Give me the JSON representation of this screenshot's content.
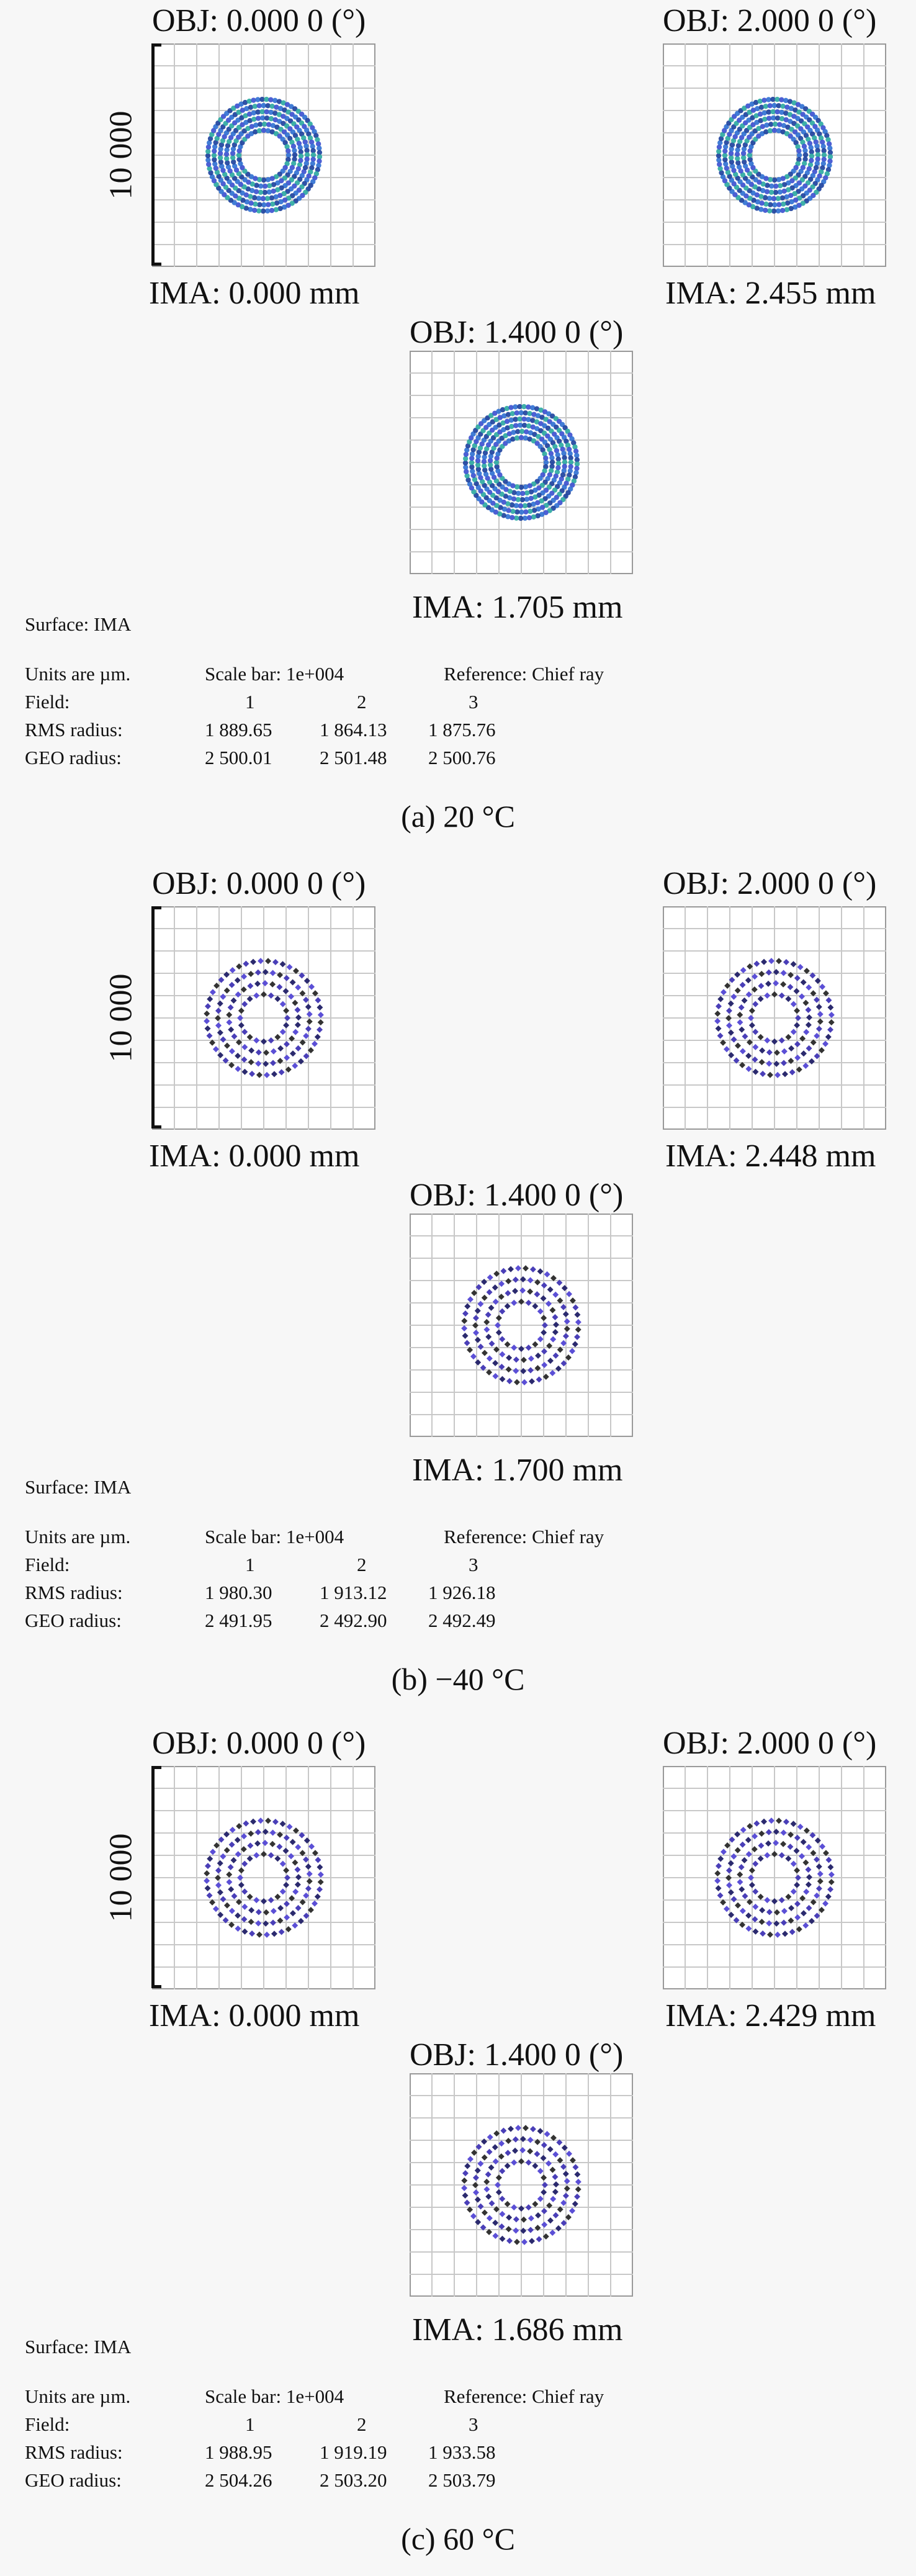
{
  "panels": [
    {
      "caption": "(a) 20 °C",
      "scale_label": "10 000",
      "marker": "circle",
      "colors": [
        "#2d6fd1",
        "#1b3f9c",
        "#2aa8a0",
        "#3b4fcf"
      ],
      "fields": [
        {
          "obj": "OBJ: 0.000 0 (°)",
          "ima": "IMA: 0.000 mm"
        },
        {
          "obj": "OBJ: 2.000 0 (°)",
          "ima": "IMA: 2.455 mm"
        },
        {
          "obj": "OBJ: 1.400 0 (°)",
          "ima": "IMA: 1.705 mm"
        }
      ],
      "info": {
        "surface": "Surface: IMA",
        "units": "Units are µm.",
        "scale_bar": "Scale bar: 1e+004",
        "reference": "Reference: Chief ray",
        "field_label": "Field:",
        "field_numbers": [
          "1",
          "2",
          "3"
        ],
        "rms_label": "RMS radius:",
        "rms": [
          "1 889.65",
          "1 864.13",
          "1 875.76"
        ],
        "geo_label": "GEO radius:",
        "geo": [
          "2 500.01",
          "2 501.48",
          "2 500.76"
        ]
      }
    },
    {
      "caption": "(b) −40 °C",
      "scale_label": "10 000",
      "marker": "diamond",
      "colors": [
        "#4a3fb8",
        "#2b2a6e",
        "#5b4fd6",
        "#333"
      ],
      "fields": [
        {
          "obj": "OBJ: 0.000 0 (°)",
          "ima": "IMA: 0.000 mm"
        },
        {
          "obj": "OBJ: 2.000 0 (°)",
          "ima": "IMA: 2.448 mm"
        },
        {
          "obj": "OBJ: 1.400 0 (°)",
          "ima": "IMA: 1.700 mm"
        }
      ],
      "info": {
        "surface": "Surface: IMA",
        "units": "Units are µm.",
        "scale_bar": "Scale bar: 1e+004",
        "reference": "Reference: Chief ray",
        "field_label": "Field:",
        "field_numbers": [
          "1",
          "2",
          "3"
        ],
        "rms_label": "RMS radius:",
        "rms": [
          "1 980.30",
          "1 913.12",
          "1 926.18"
        ],
        "geo_label": "GEO radius:",
        "geo": [
          "2 491.95",
          "2 492.90",
          "2 492.49"
        ]
      }
    },
    {
      "caption": "(c) 60 °C",
      "scale_label": "10 000",
      "marker": "diamond",
      "colors": [
        "#4a3fb8",
        "#2b2a6e",
        "#5b4fd6",
        "#333"
      ],
      "fields": [
        {
          "obj": "OBJ: 0.000 0 (°)",
          "ima": "IMA: 0.000 mm"
        },
        {
          "obj": "OBJ: 2.000 0 (°)",
          "ima": "IMA: 2.429 mm"
        },
        {
          "obj": "OBJ: 1.400 0 (°)",
          "ima": "IMA: 1.686 mm"
        }
      ],
      "info": {
        "surface": "Surface: IMA",
        "units": "Units are µm.",
        "scale_bar": "Scale bar: 1e+004",
        "reference": "Reference: Chief ray",
        "field_label": "Field:",
        "field_numbers": [
          "1",
          "2",
          "3"
        ],
        "rms_label": "RMS radius:",
        "rms": [
          "1 988.95",
          "1 919.19",
          "1 933.58"
        ],
        "geo_label": "GEO radius:",
        "geo": [
          "2 504.26",
          "2 503.20",
          "2 503.79"
        ]
      }
    }
  ]
}
